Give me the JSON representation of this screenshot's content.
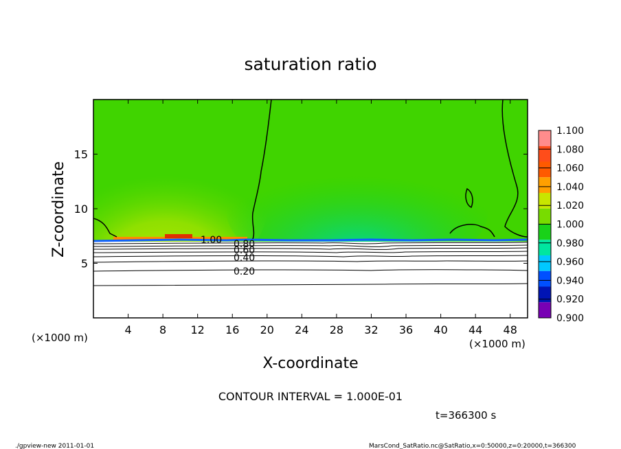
{
  "chart_data": {
    "type": "heatmap",
    "title": "saturation ratio",
    "xlabel": "X-coordinate",
    "ylabel": "Z-coordinate",
    "x_unit": "(×1000 m)",
    "z_unit": "(×1000 m)",
    "xlim": [
      0,
      50
    ],
    "ylim": [
      0,
      20
    ],
    "x_ticks": [
      "4",
      "8",
      "12",
      "16",
      "20",
      "24",
      "28",
      "32",
      "36",
      "40",
      "44",
      "48"
    ],
    "y_ticks": [
      "5",
      "10",
      "15"
    ],
    "colorbar_levels": [
      "1.100",
      "1.080",
      "1.060",
      "1.040",
      "1.020",
      "1.000",
      "0.980",
      "0.960",
      "0.940",
      "0.920",
      "0.900"
    ],
    "colorbar_colors": [
      "#ff8c8c",
      "#ff4d1a",
      "#ff5a00",
      "#ffa000",
      "#c8e600",
      "#78dc00",
      "#19d219",
      "#00e6a0",
      "#00c8ff",
      "#0050ff",
      "#0014b4",
      "#7800b4"
    ],
    "contour_labels": [
      "1.00",
      "0.80",
      "0.60",
      "0.40",
      "0.20"
    ],
    "contour_interval": "CONTOUR INTERVAL = 1.000E-01",
    "time": "t=366300 s",
    "footer_left": "./gpview-new  2011-01-01",
    "footer_right": "MarsCond_SatRatio.nc@SatRatio,x=0:50000,z=0:20000,t=366300"
  }
}
